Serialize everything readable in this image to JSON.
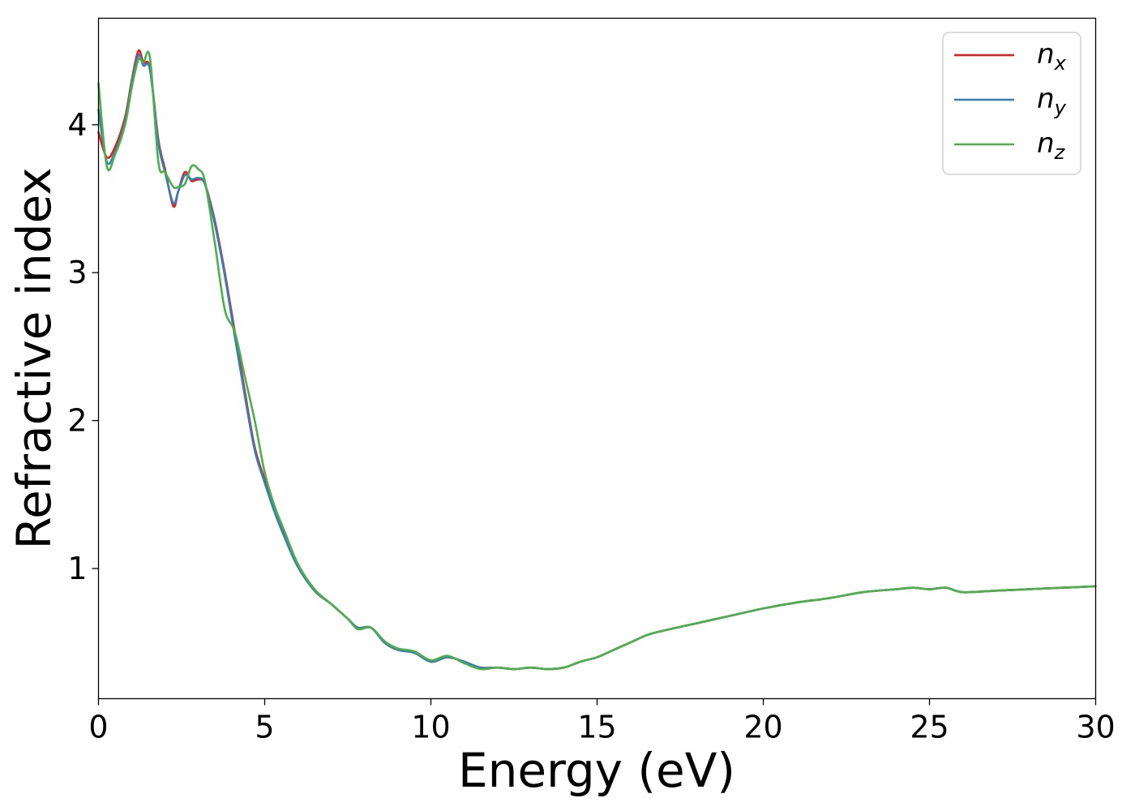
{
  "chart_data": {
    "type": "line",
    "xlabel": "Energy (eV)",
    "ylabel": "Refractive index",
    "xlim": [
      0,
      30
    ],
    "ylim": [
      0.12,
      4.72
    ],
    "xticks": [
      0,
      5,
      10,
      15,
      20,
      25,
      30
    ],
    "yticks": [
      1,
      2,
      3,
      4
    ],
    "grid": false,
    "legend_position": "top-right",
    "series": [
      {
        "name": "n_x",
        "symbol": "n",
        "subscript": "x",
        "color": "#e41a1c",
        "x": [
          0,
          0.25,
          0.5,
          0.8,
          1.0,
          1.2,
          1.35,
          1.55,
          1.8,
          2.0,
          2.25,
          2.4,
          2.6,
          2.8,
          3.0,
          3.2,
          3.5,
          3.8,
          4.1,
          4.4,
          4.7,
          5.0,
          5.3,
          5.6,
          6.0,
          6.5,
          7.0,
          7.5,
          7.8,
          8.2,
          8.6,
          9.0,
          9.5,
          10.0,
          10.5,
          11.0,
          11.5,
          12.0,
          12.5,
          13.0,
          13.5,
          14.0,
          14.5,
          15.0,
          15.5,
          16.0,
          16.5,
          17.0,
          18.0,
          19.0,
          20.0,
          21.0,
          22.0,
          23.0,
          24.0,
          24.5,
          25.0,
          25.5,
          26.0,
          27.0,
          28.0,
          29.0,
          30.0
        ],
        "y": [
          3.95,
          3.78,
          3.85,
          4.05,
          4.3,
          4.5,
          4.42,
          4.38,
          3.9,
          3.7,
          3.45,
          3.55,
          3.68,
          3.62,
          3.63,
          3.6,
          3.35,
          3.0,
          2.6,
          2.2,
          1.82,
          1.6,
          1.4,
          1.22,
          1.02,
          0.85,
          0.76,
          0.66,
          0.6,
          0.6,
          0.5,
          0.45,
          0.43,
          0.37,
          0.4,
          0.37,
          0.33,
          0.33,
          0.32,
          0.33,
          0.32,
          0.33,
          0.37,
          0.4,
          0.45,
          0.5,
          0.55,
          0.58,
          0.63,
          0.68,
          0.73,
          0.77,
          0.8,
          0.84,
          0.86,
          0.87,
          0.86,
          0.87,
          0.84,
          0.85,
          0.86,
          0.87,
          0.88
        ]
      },
      {
        "name": "n_y",
        "symbol": "n",
        "subscript": "y",
        "color": "#377eb8",
        "x": [
          0,
          0.25,
          0.5,
          0.8,
          1.0,
          1.2,
          1.35,
          1.55,
          1.8,
          2.0,
          2.25,
          2.4,
          2.6,
          2.8,
          3.0,
          3.2,
          3.5,
          3.8,
          4.1,
          4.4,
          4.7,
          5.0,
          5.3,
          5.6,
          6.0,
          6.5,
          7.0,
          7.5,
          7.8,
          8.2,
          8.6,
          9.0,
          9.5,
          10.0,
          10.5,
          11.0,
          11.5,
          12.0,
          12.5,
          13.0,
          13.5,
          14.0,
          14.5,
          15.0,
          15.5,
          16.0,
          16.5,
          17.0,
          18.0,
          19.0,
          20.0,
          21.0,
          22.0,
          23.0,
          24.0,
          24.5,
          25.0,
          25.5,
          26.0,
          27.0,
          28.0,
          29.0,
          30.0
        ],
        "y": [
          4.1,
          3.75,
          3.82,
          4.02,
          4.28,
          4.47,
          4.4,
          4.37,
          3.88,
          3.68,
          3.47,
          3.55,
          3.66,
          3.63,
          3.64,
          3.6,
          3.33,
          2.98,
          2.57,
          2.17,
          1.8,
          1.58,
          1.38,
          1.21,
          1.01,
          0.85,
          0.76,
          0.66,
          0.6,
          0.6,
          0.5,
          0.45,
          0.43,
          0.37,
          0.4,
          0.37,
          0.33,
          0.33,
          0.32,
          0.33,
          0.32,
          0.33,
          0.37,
          0.4,
          0.45,
          0.5,
          0.55,
          0.58,
          0.63,
          0.68,
          0.73,
          0.77,
          0.8,
          0.84,
          0.86,
          0.87,
          0.86,
          0.87,
          0.84,
          0.85,
          0.86,
          0.87,
          0.88
        ]
      },
      {
        "name": "n_z",
        "symbol": "n",
        "subscript": "z",
        "color": "#4daf4a",
        "x": [
          0,
          0.25,
          0.5,
          0.8,
          1.0,
          1.2,
          1.35,
          1.55,
          1.8,
          2.0,
          2.25,
          2.4,
          2.6,
          2.8,
          3.0,
          3.2,
          3.5,
          3.8,
          4.1,
          4.4,
          4.7,
          5.0,
          5.3,
          5.6,
          6.0,
          6.5,
          7.0,
          7.5,
          7.8,
          8.2,
          8.6,
          9.0,
          9.5,
          10.0,
          10.5,
          11.0,
          11.5,
          12.0,
          12.5,
          13.0,
          13.5,
          14.0,
          14.5,
          15.0,
          15.5,
          16.0,
          16.5,
          17.0,
          18.0,
          19.0,
          20.0,
          21.0,
          22.0,
          23.0,
          24.0,
          24.5,
          25.0,
          25.5,
          26.0,
          27.0,
          28.0,
          29.0,
          30.0
        ],
        "y": [
          4.28,
          3.72,
          3.8,
          4.0,
          4.25,
          4.44,
          4.42,
          4.45,
          3.75,
          3.68,
          3.58,
          3.58,
          3.6,
          3.72,
          3.7,
          3.62,
          3.2,
          2.75,
          2.6,
          2.3,
          2.0,
          1.65,
          1.42,
          1.25,
          1.03,
          0.86,
          0.76,
          0.66,
          0.59,
          0.6,
          0.51,
          0.46,
          0.44,
          0.38,
          0.41,
          0.36,
          0.32,
          0.33,
          0.32,
          0.33,
          0.32,
          0.33,
          0.37,
          0.4,
          0.45,
          0.5,
          0.55,
          0.58,
          0.63,
          0.68,
          0.73,
          0.77,
          0.8,
          0.84,
          0.86,
          0.87,
          0.86,
          0.87,
          0.84,
          0.85,
          0.86,
          0.87,
          0.88
        ]
      }
    ]
  }
}
